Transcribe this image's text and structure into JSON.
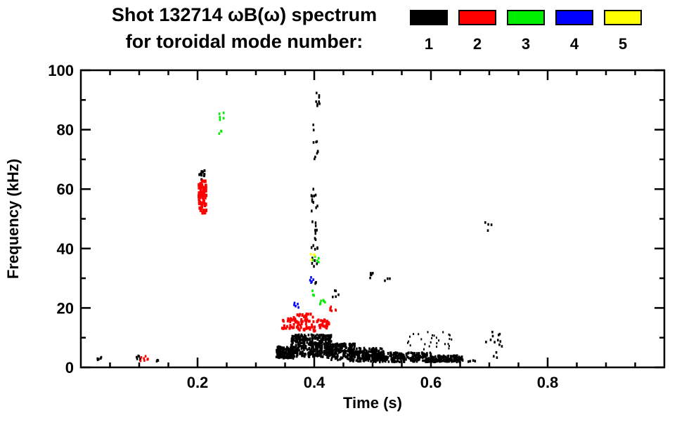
{
  "title": "Shot 132714 ωB(ω) spectrum",
  "subtitle": "for toroidal mode number:",
  "legend": {
    "items": [
      {
        "label": "1",
        "color": "#000000"
      },
      {
        "label": "2",
        "color": "#ff0000"
      },
      {
        "label": "3",
        "color": "#00ee00"
      },
      {
        "label": "4",
        "color": "#0000ff"
      },
      {
        "label": "5",
        "color": "#ffff00"
      }
    ]
  },
  "chart_data": {
    "type": "scatter",
    "title": "Shot 132714 ωB(ω) spectrum for toroidal mode number 1-5",
    "xlabel": "Time (s)",
    "ylabel": "Frequency (kHz)",
    "xlim": [
      0,
      1
    ],
    "ylim": [
      0,
      100
    ],
    "xticks": [
      0.2,
      0.4,
      0.6,
      0.8
    ],
    "xtick_labels": [
      "0.2",
      "0.4",
      "0.6",
      "0.8"
    ],
    "yticks": [
      0,
      20,
      40,
      60,
      80,
      100
    ],
    "ytick_labels": [
      "0",
      "20",
      "40",
      "60",
      "80",
      "100"
    ],
    "x_minor_step": 0.05,
    "y_minor_step": 10,
    "grid": false,
    "legend_position": "top-right",
    "series": [
      {
        "name": "n=1",
        "color": "#000000",
        "clusters": [
          {
            "t": [
              0.335,
              0.365
            ],
            "f": [
              3,
              7
            ],
            "n": 150
          },
          {
            "t": [
              0.36,
              0.43
            ],
            "f": [
              3.5,
              11
            ],
            "n": 380
          },
          {
            "t": [
              0.42,
              0.47
            ],
            "f": [
              2.5,
              8
            ],
            "n": 220
          },
          {
            "t": [
              0.46,
              0.52
            ],
            "f": [
              2,
              6.5
            ],
            "n": 220
          },
          {
            "t": [
              0.5,
              0.6
            ],
            "f": [
              1.8,
              5
            ],
            "n": 240
          },
          {
            "t": [
              0.6,
              0.655
            ],
            "f": [
              1.8,
              4
            ],
            "n": 130
          },
          {
            "t": [
              0.56,
              0.64
            ],
            "f": [
              6,
              12
            ],
            "n": 28,
            "w": 2,
            "h": 3
          },
          {
            "t": [
              0.395,
              0.406
            ],
            "f": [
              28,
              62
            ],
            "n": 32,
            "w": 2.5,
            "h": 4
          },
          {
            "t": [
              0.397,
              0.407
            ],
            "f": [
              70,
              82
            ],
            "n": 10
          },
          {
            "t": [
              0.401,
              0.41
            ],
            "f": [
              88,
              95
            ],
            "n": 8
          },
          {
            "t": [
              0.203,
              0.212
            ],
            "f": [
              63,
              67
            ],
            "n": 10,
            "w": 3,
            "h": 4
          },
          {
            "t": [
              0.028,
              0.036
            ],
            "f": [
              2,
              4
            ],
            "n": 5
          },
          {
            "t": [
              0.094,
              0.104
            ],
            "f": [
              2,
              4
            ],
            "n": 6
          },
          {
            "t": [
              0.129,
              0.136
            ],
            "f": [
              1.5,
              3
            ],
            "n": 3
          },
          {
            "t": [
              0.43,
              0.442
            ],
            "f": [
              23,
              26
            ],
            "n": 5
          },
          {
            "t": [
              0.495,
              0.507
            ],
            "f": [
              29,
              33
            ],
            "n": 6
          },
          {
            "t": [
              0.52,
              0.53
            ],
            "f": [
              28,
              30
            ],
            "n": 3
          },
          {
            "t": [
              0.693,
              0.704
            ],
            "f": [
              46,
              49
            ],
            "n": 4
          },
          {
            "t": [
              0.693,
              0.722
            ],
            "f": [
              3,
              12
            ],
            "n": 14
          },
          {
            "t": [
              0.663,
              0.676
            ],
            "f": [
              1.5,
              3
            ],
            "n": 4
          }
        ]
      },
      {
        "name": "n=2",
        "color": "#ff0000",
        "clusters": [
          {
            "t": [
              0.202,
              0.215
            ],
            "f": [
              52,
              63
            ],
            "n": 70,
            "w": 3.5,
            "h": 5
          },
          {
            "t": [
              0.345,
              0.372
            ],
            "f": [
              13,
              16.5
            ],
            "n": 30,
            "w": 3,
            "h": 4
          },
          {
            "t": [
              0.365,
              0.402
            ],
            "f": [
              12.5,
              18
            ],
            "n": 55,
            "w": 3,
            "h": 4
          },
          {
            "t": [
              0.398,
              0.428
            ],
            "f": [
              12,
              16
            ],
            "n": 35,
            "w": 3,
            "h": 4
          },
          {
            "t": [
              0.425,
              0.437
            ],
            "f": [
              19,
              21.5
            ],
            "n": 7
          },
          {
            "t": [
              0.1,
              0.116
            ],
            "f": [
              2,
              4
            ],
            "n": 7
          }
        ]
      },
      {
        "name": "n=3",
        "color": "#00ee00",
        "clusters": [
          {
            "t": [
              0.237,
              0.245
            ],
            "f": [
              83,
              86
            ],
            "n": 5
          },
          {
            "t": [
              0.237,
              0.243
            ],
            "f": [
              78,
              80
            ],
            "n": 3
          },
          {
            "t": [
              0.397,
              0.408
            ],
            "f": [
              35,
              37.5
            ],
            "n": 5
          },
          {
            "t": [
              0.407,
              0.419
            ],
            "f": [
              21,
              23.5
            ],
            "n": 6
          },
          {
            "t": [
              0.397,
              0.405
            ],
            "f": [
              24,
              26
            ],
            "n": 3
          }
        ]
      },
      {
        "name": "n=4",
        "color": "#0000ff",
        "clusters": [
          {
            "t": [
              0.365,
              0.375
            ],
            "f": [
              20,
              22
            ],
            "n": 5
          },
          {
            "t": [
              0.391,
              0.399
            ],
            "f": [
              28,
              30.5
            ],
            "n": 5
          }
        ]
      },
      {
        "name": "n=5",
        "color": "#ffff00",
        "clusters": [
          {
            "t": [
              0.393,
              0.401
            ],
            "f": [
              36,
              38.5
            ],
            "n": 4
          }
        ]
      }
    ]
  }
}
